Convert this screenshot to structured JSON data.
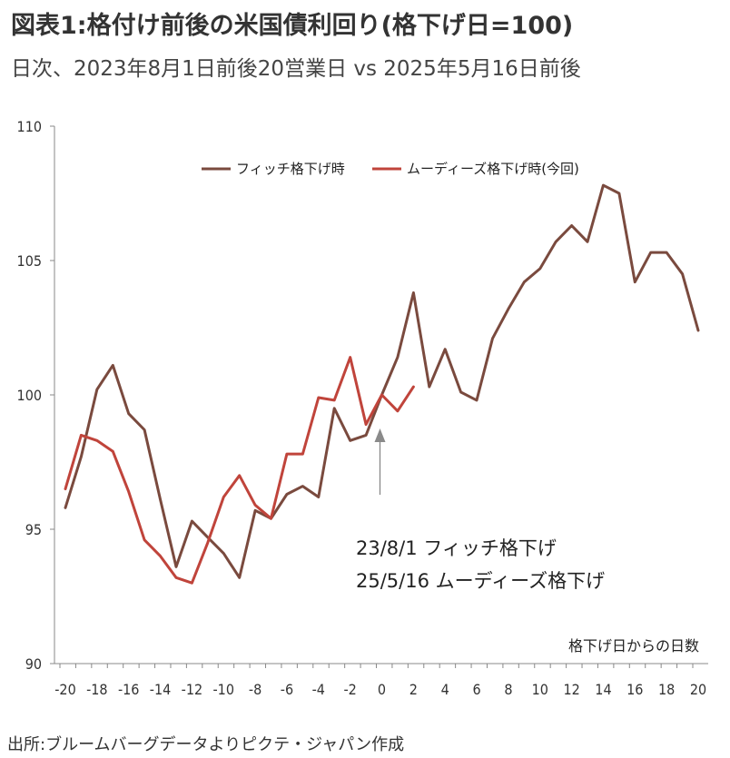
{
  "header": {
    "title": "図表1:格付け前後の米国債利回り(格下げ日=100)",
    "subtitle": "日次、2023年8月1日前後20営業日 vs 2025年5月16日前後"
  },
  "source": "出所:ブルームバーグデータよりピクテ・ジャパン作成",
  "annotations": {
    "line1": "23/8/1 フィッチ格下げ",
    "line2": "25/5/16 ムーディーズ格下げ"
  },
  "chart_data": {
    "type": "line",
    "xlabel": "格下げ日からの日数",
    "ylabel": "",
    "xlim": [
      -20,
      20
    ],
    "ylim": [
      90,
      110
    ],
    "x_ticks": [
      -20,
      -18,
      -16,
      -14,
      -12,
      -10,
      -8,
      -6,
      -4,
      -2,
      0,
      2,
      4,
      6,
      8,
      10,
      12,
      14,
      16,
      18,
      20
    ],
    "x_tick_labels": [
      "-20",
      "-18",
      "-16",
      "-14",
      "-12",
      "-10",
      "-8",
      "-6",
      "-4",
      "-2",
      "0",
      "2",
      "4",
      "6",
      "8",
      "10",
      "12",
      "14",
      "16",
      "18",
      "20"
    ],
    "y_ticks": [
      90,
      95,
      100,
      105,
      110
    ],
    "y_tick_labels": [
      "90",
      "95",
      "100",
      "105",
      "110"
    ],
    "legend_position": "top",
    "arrow_at": 0,
    "series": [
      {
        "name": "フィッチ格下げ時",
        "color": "#7a4a3e",
        "x": [
          -20,
          -19,
          -18,
          -17,
          -16,
          -15,
          -14,
          -13,
          -12,
          -11,
          -10,
          -9,
          -8,
          -7,
          -6,
          -5,
          -4,
          -3,
          -2,
          -1,
          0,
          1,
          2,
          3,
          4,
          5,
          6,
          7,
          8,
          9,
          10,
          11,
          12,
          13,
          14,
          15,
          16,
          17,
          18,
          19,
          20
        ],
        "values": [
          95.8,
          97.7,
          100.2,
          101.1,
          99.3,
          98.7,
          96.1,
          93.6,
          95.3,
          94.7,
          94.1,
          93.2,
          95.7,
          95.4,
          96.3,
          96.6,
          96.2,
          99.5,
          98.3,
          98.5,
          100.0,
          101.4,
          103.8,
          100.3,
          101.7,
          100.1,
          99.8,
          102.1,
          103.2,
          104.2,
          104.7,
          105.7,
          106.3,
          105.7,
          107.8,
          107.5,
          104.2,
          105.3,
          105.3,
          104.5,
          102.4
        ]
      },
      {
        "name": "ムーディーズ格下げ時(今回)",
        "color": "#c0443b",
        "x": [
          -20,
          -19,
          -18,
          -17,
          -16,
          -15,
          -14,
          -13,
          -12,
          -11,
          -10,
          -9,
          -8,
          -7,
          -6,
          -5,
          -4,
          -3,
          -2,
          -1,
          0,
          1,
          2
        ],
        "values": [
          96.5,
          98.5,
          98.3,
          97.9,
          96.4,
          94.6,
          94.0,
          93.2,
          93.0,
          94.5,
          96.2,
          97.0,
          95.9,
          95.4,
          97.8,
          97.8,
          99.9,
          99.8,
          101.4,
          98.9,
          100.0,
          99.4,
          100.3
        ]
      }
    ]
  }
}
